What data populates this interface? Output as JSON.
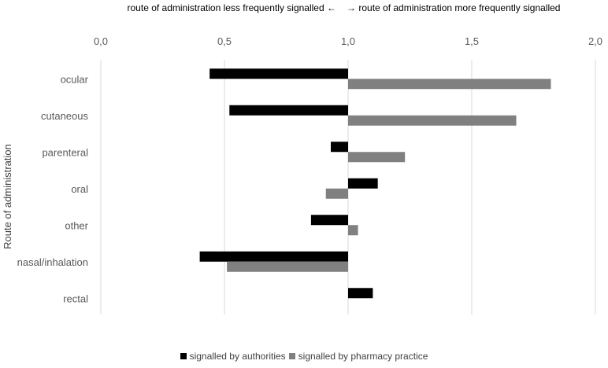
{
  "chart_data": {
    "type": "bar",
    "orientation": "horizontal",
    "annotation_left": "route of administration less frequently signalled",
    "annotation_left_arrow": "←",
    "annotation_right_arrow": "→",
    "annotation_right": "route of administration more frequently signalled",
    "xlabel": "",
    "ylabel": "Route of administration",
    "xlim": [
      0,
      2
    ],
    "baseline": 1.0,
    "x_ticks": [
      0,
      0.5,
      1,
      1.5,
      2
    ],
    "x_tick_labels": [
      "0,0",
      "0,5",
      "1,0",
      "1,5",
      "2,0"
    ],
    "grid": "vertical",
    "legend_position": "bottom",
    "categories": [
      "ocular",
      "cutaneous",
      "parenteral",
      "oral",
      "other",
      "nasal/inhalation",
      "rectal"
    ],
    "series": [
      {
        "name": "signalled by authorities",
        "color": "#000000",
        "values": [
          0.44,
          0.52,
          0.93,
          1.12,
          0.85,
          0.4,
          1.1
        ]
      },
      {
        "name": "signalled by pharmacy practice",
        "color": "#808080",
        "values": [
          1.82,
          1.68,
          1.23,
          0.91,
          1.04,
          0.51,
          null
        ]
      }
    ]
  }
}
